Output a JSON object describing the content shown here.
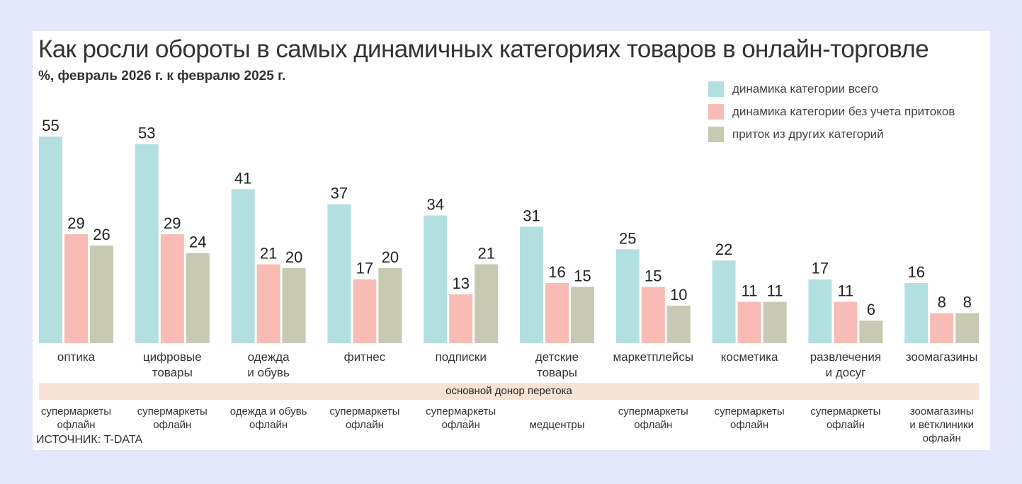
{
  "title": "Как росли обороты в самых динамичных категориях товаров в онлайн-торговле",
  "subtitle": "%, февраль 2026 г. к февралю 2025 г.",
  "donor_band_label": "основной донор перетока",
  "source": "ИСТОЧНИК: T-DATA",
  "colors": {
    "total": "#b4dfe0",
    "without_inflows": "#f8bcb4",
    "inflow": "#c8c9b2",
    "band": "#f9e3d6",
    "background": "#e3e8fb"
  },
  "chart_data": {
    "type": "bar",
    "title": "Как росли обороты в самых динамичных категориях товаров в онлайн-торговле",
    "subtitle": "%, февраль 2026 г. к февралю 2025 г.",
    "categories": [
      "оптика",
      "цифровые\nтовары",
      "одежда\nи обувь",
      "фитнес",
      "подписки",
      "детские\nтовары",
      "маркетплейсы",
      "косметика",
      "развлечения\nи досуг",
      "зоомагазины"
    ],
    "donors": [
      "супермаркеты\nофлайн",
      "супермаркеты\nофлайн",
      "одежда и обувь\nофлайн",
      "супермаркеты\nофлайн",
      "супермаркеты\nофлайн",
      "медцентры",
      "супермаркеты\nофлайн",
      "супермаркеты\nофлайн",
      "супермаркеты\nофлайн",
      "зоомагазины\nи ветклиники\nофлайн"
    ],
    "series": [
      {
        "name": "динамика категории всего",
        "values": [
          55,
          53,
          41,
          37,
          34,
          31,
          25,
          22,
          17,
          16
        ]
      },
      {
        "name": "динамика категории без учета притоков",
        "values": [
          29,
          29,
          21,
          17,
          13,
          16,
          15,
          11,
          11,
          8
        ]
      },
      {
        "name": "приток из других категорий",
        "values": [
          26,
          24,
          20,
          20,
          21,
          15,
          10,
          11,
          6,
          8
        ]
      }
    ],
    "ylim": [
      0,
      60
    ],
    "grid": false,
    "legend": "top-right",
    "data_labels": true
  }
}
